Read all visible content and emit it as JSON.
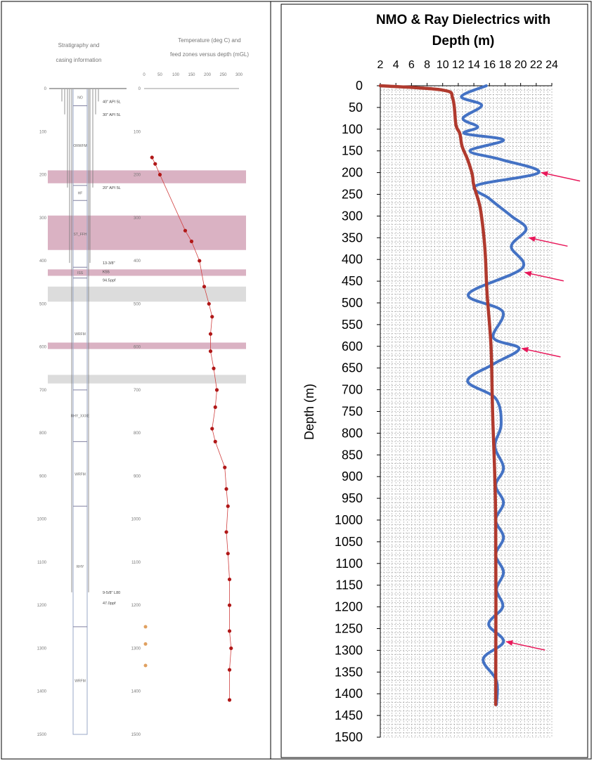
{
  "left_panel": {
    "strat_header": [
      "Stratigraphy and",
      "casing information"
    ],
    "temp_header": [
      "Temperature (deg C) and",
      "feed zones versus depth (mGL)"
    ],
    "depth_ticks": [
      0,
      100,
      200,
      300,
      400,
      500,
      600,
      700,
      800,
      900,
      1000,
      1100,
      1200,
      1300,
      1400,
      1500
    ],
    "temp_ticks": [
      0,
      50,
      100,
      150,
      200,
      250,
      300
    ],
    "units": [
      {
        "label": "NO",
        "top": 0,
        "bottom": 40
      },
      {
        "label": "ORWFM",
        "top": 40,
        "bottom": 225
      },
      {
        "label": "HF",
        "top": 225,
        "bottom": 260
      },
      {
        "label": "ST_FFH",
        "top": 260,
        "bottom": 415
      },
      {
        "label": "ISS",
        "top": 415,
        "bottom": 440
      },
      {
        "label": "WRFM",
        "top": 440,
        "bottom": 700
      },
      {
        "label": "RHY_XXXE",
        "top": 700,
        "bottom": 820
      },
      {
        "label": "WRFM",
        "top": 820,
        "bottom": 970
      },
      {
        "label": "RHY",
        "top": 970,
        "bottom": 1250
      },
      {
        "label": "WRFM",
        "top": 1250,
        "bottom": 1500
      }
    ],
    "casing_labels": [
      {
        "text": "40\" API 5L",
        "depth": 30
      },
      {
        "text": "30\" API 5L",
        "depth": 60
      },
      {
        "text": "20\" API 5L",
        "depth": 230
      },
      {
        "text": "13-3/8\"",
        "depth": 405
      },
      {
        "text": "K55",
        "depth": 425
      },
      {
        "text": "94.5ppf",
        "depth": 445
      },
      {
        "text": "9-5/8\" L80",
        "depth": 1170
      },
      {
        "text": "47.0ppf",
        "depth": 1195
      }
    ],
    "feed_zones": [
      {
        "top": 190,
        "bottom": 220,
        "color": "#d4a5b9"
      },
      {
        "top": 295,
        "bottom": 375,
        "color": "#d4a5b9"
      },
      {
        "top": 420,
        "bottom": 435,
        "color": "#d4a5b9"
      },
      {
        "top": 460,
        "bottom": 495,
        "color": "#d6d6d6"
      },
      {
        "top": 590,
        "bottom": 605,
        "color": "#d4a5b9"
      },
      {
        "top": 665,
        "bottom": 685,
        "color": "#d6d6d6"
      }
    ],
    "temperature": [
      {
        "depth": 160,
        "temp": 25
      },
      {
        "depth": 175,
        "temp": 35
      },
      {
        "depth": 200,
        "temp": 50
      },
      {
        "depth": 330,
        "temp": 130
      },
      {
        "depth": 355,
        "temp": 150
      },
      {
        "depth": 400,
        "temp": 175
      },
      {
        "depth": 460,
        "temp": 190
      },
      {
        "depth": 500,
        "temp": 205
      },
      {
        "depth": 530,
        "temp": 215
      },
      {
        "depth": 570,
        "temp": 210
      },
      {
        "depth": 610,
        "temp": 210
      },
      {
        "depth": 650,
        "temp": 220
      },
      {
        "depth": 700,
        "temp": 230
      },
      {
        "depth": 740,
        "temp": 225
      },
      {
        "depth": 790,
        "temp": 215
      },
      {
        "depth": 820,
        "temp": 225
      },
      {
        "depth": 880,
        "temp": 255
      },
      {
        "depth": 930,
        "temp": 260
      },
      {
        "depth": 970,
        "temp": 265
      },
      {
        "depth": 1030,
        "temp": 260
      },
      {
        "depth": 1080,
        "temp": 265
      },
      {
        "depth": 1140,
        "temp": 270
      },
      {
        "depth": 1200,
        "temp": 270
      },
      {
        "depth": 1260,
        "temp": 270
      },
      {
        "depth": 1300,
        "temp": 275
      },
      {
        "depth": 1350,
        "temp": 270
      },
      {
        "depth": 1420,
        "temp": 270
      }
    ],
    "orange_markers": [
      1250,
      1290,
      1340
    ]
  },
  "chart_data": {
    "type": "line",
    "title": "NMO & Ray Dielectrics with Depth (m)",
    "ylabel": "Depth (m)",
    "xlabel": "",
    "xlim": [
      2,
      24
    ],
    "ylim": [
      0,
      1500
    ],
    "x_ticks": [
      2,
      4,
      6,
      8,
      10,
      12,
      14,
      16,
      18,
      20,
      22,
      24
    ],
    "y_ticks": [
      0,
      50,
      100,
      150,
      200,
      250,
      300,
      350,
      400,
      450,
      500,
      550,
      600,
      650,
      700,
      750,
      800,
      850,
      900,
      950,
      1000,
      1050,
      1100,
      1150,
      1200,
      1250,
      1300,
      1350,
      1400,
      1450,
      1500
    ],
    "grid": true,
    "orientation": "x-top, y-inverted",
    "series": [
      {
        "color": "#4472c4",
        "points": [
          [
            15.6,
            0
          ],
          [
            12.4,
            25
          ],
          [
            15,
            45
          ],
          [
            12.6,
            75
          ],
          [
            14.5,
            95
          ],
          [
            12.8,
            110
          ],
          [
            17.8,
            125
          ],
          [
            13.5,
            150
          ],
          [
            17.5,
            170
          ],
          [
            22.3,
            200
          ],
          [
            14.3,
            230
          ],
          [
            16,
            260
          ],
          [
            18.8,
            300
          ],
          [
            20.7,
            330
          ],
          [
            18.8,
            370
          ],
          [
            20.2,
            420
          ],
          [
            13.3,
            480
          ],
          [
            17.7,
            520
          ],
          [
            16.5,
            580
          ],
          [
            19.8,
            605
          ],
          [
            16.6,
            640
          ],
          [
            13.2,
            680
          ],
          [
            16.8,
            720
          ],
          [
            17.5,
            780
          ],
          [
            16.7,
            830
          ],
          [
            17.8,
            880
          ],
          [
            16.8,
            920
          ],
          [
            17.8,
            960
          ],
          [
            16.8,
            1000
          ],
          [
            17.8,
            1040
          ],
          [
            16.8,
            1080
          ],
          [
            17.8,
            1120
          ],
          [
            16.9,
            1160
          ],
          [
            17.7,
            1200
          ],
          [
            15.9,
            1240
          ],
          [
            17.8,
            1280
          ],
          [
            15.2,
            1320
          ],
          [
            16.9,
            1370
          ],
          [
            16.9,
            1425
          ]
        ]
      },
      {
        "color": "#b03a2e",
        "points": [
          [
            2,
            0
          ],
          [
            10,
            10
          ],
          [
            11.3,
            30
          ],
          [
            11.7,
            90
          ],
          [
            12.2,
            110
          ],
          [
            12.5,
            140
          ],
          [
            13.2,
            170
          ],
          [
            13.8,
            205
          ],
          [
            14,
            230
          ],
          [
            14.8,
            280
          ],
          [
            15.3,
            350
          ],
          [
            15.5,
            400
          ],
          [
            15.7,
            480
          ],
          [
            16.2,
            600
          ],
          [
            16.4,
            750
          ],
          [
            16.8,
            1000
          ],
          [
            16.8,
            1425
          ]
        ]
      }
    ],
    "annotation_arrows": [
      200,
      350,
      430,
      605,
      1280
    ]
  }
}
